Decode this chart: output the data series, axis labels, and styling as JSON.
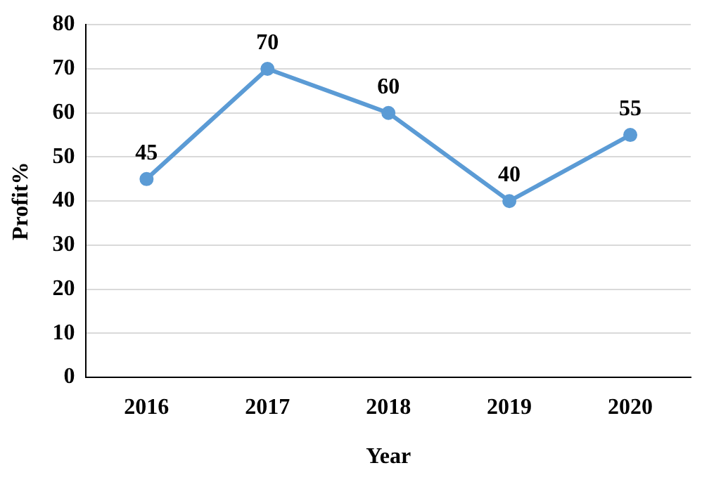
{
  "chart_data": {
    "type": "line",
    "xlabel": "Year",
    "ylabel": "Profit%",
    "categories": [
      "2016",
      "2017",
      "2018",
      "2019",
      "2020"
    ],
    "series": [
      {
        "color": "#5b9bd5",
        "values": [
          45,
          70,
          60,
          40,
          55
        ]
      }
    ],
    "ylim": [
      0,
      80
    ],
    "yticks": [
      0,
      10,
      20,
      30,
      40,
      50,
      60,
      70,
      80
    ],
    "grid": "y",
    "legend": false,
    "marker": "circle",
    "line_style": "solid",
    "data_labels": true
  }
}
